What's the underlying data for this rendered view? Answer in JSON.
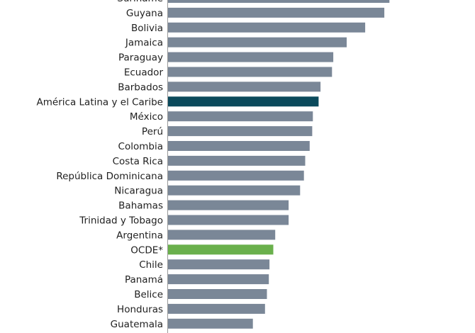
{
  "chart_data": {
    "type": "bar",
    "orientation": "horizontal",
    "title": "",
    "xlabel": "",
    "ylabel": "",
    "xlim": [
      0,
      40
    ],
    "grid": false,
    "legend": "none",
    "categories": [
      "Suriname",
      "Guyana",
      "Bolivia",
      "Jamaica",
      "Paraguay",
      "Ecuador",
      "Barbados",
      "América Latina y el Caribe",
      "México",
      "Perú",
      "Colombia",
      "Costa Rica",
      "República Dominicana",
      "Nicaragua",
      "Bahamas",
      "Trinidad y Tobago",
      "Argentina",
      "OCDE*",
      "Chile",
      "Panamá",
      "Belice",
      "Honduras",
      "Guatemala"
    ],
    "values": [
      34.7,
      33.9,
      30.9,
      28.0,
      25.9,
      25.7,
      23.9,
      23.6,
      22.7,
      22.6,
      22.2,
      21.5,
      21.3,
      20.7,
      18.9,
      18.9,
      16.8,
      16.5,
      15.9,
      15.8,
      15.5,
      15.2,
      13.3
    ],
    "colors": {
      "default": "#7a8797",
      "highlight_region": "#0b4a5c",
      "highlight_oecd": "#6ab04c",
      "axis": "#9a9a9a"
    },
    "highlights": {
      "América Latina y el Caribe": "highlight_region",
      "OCDE*": "highlight_oecd"
    }
  }
}
